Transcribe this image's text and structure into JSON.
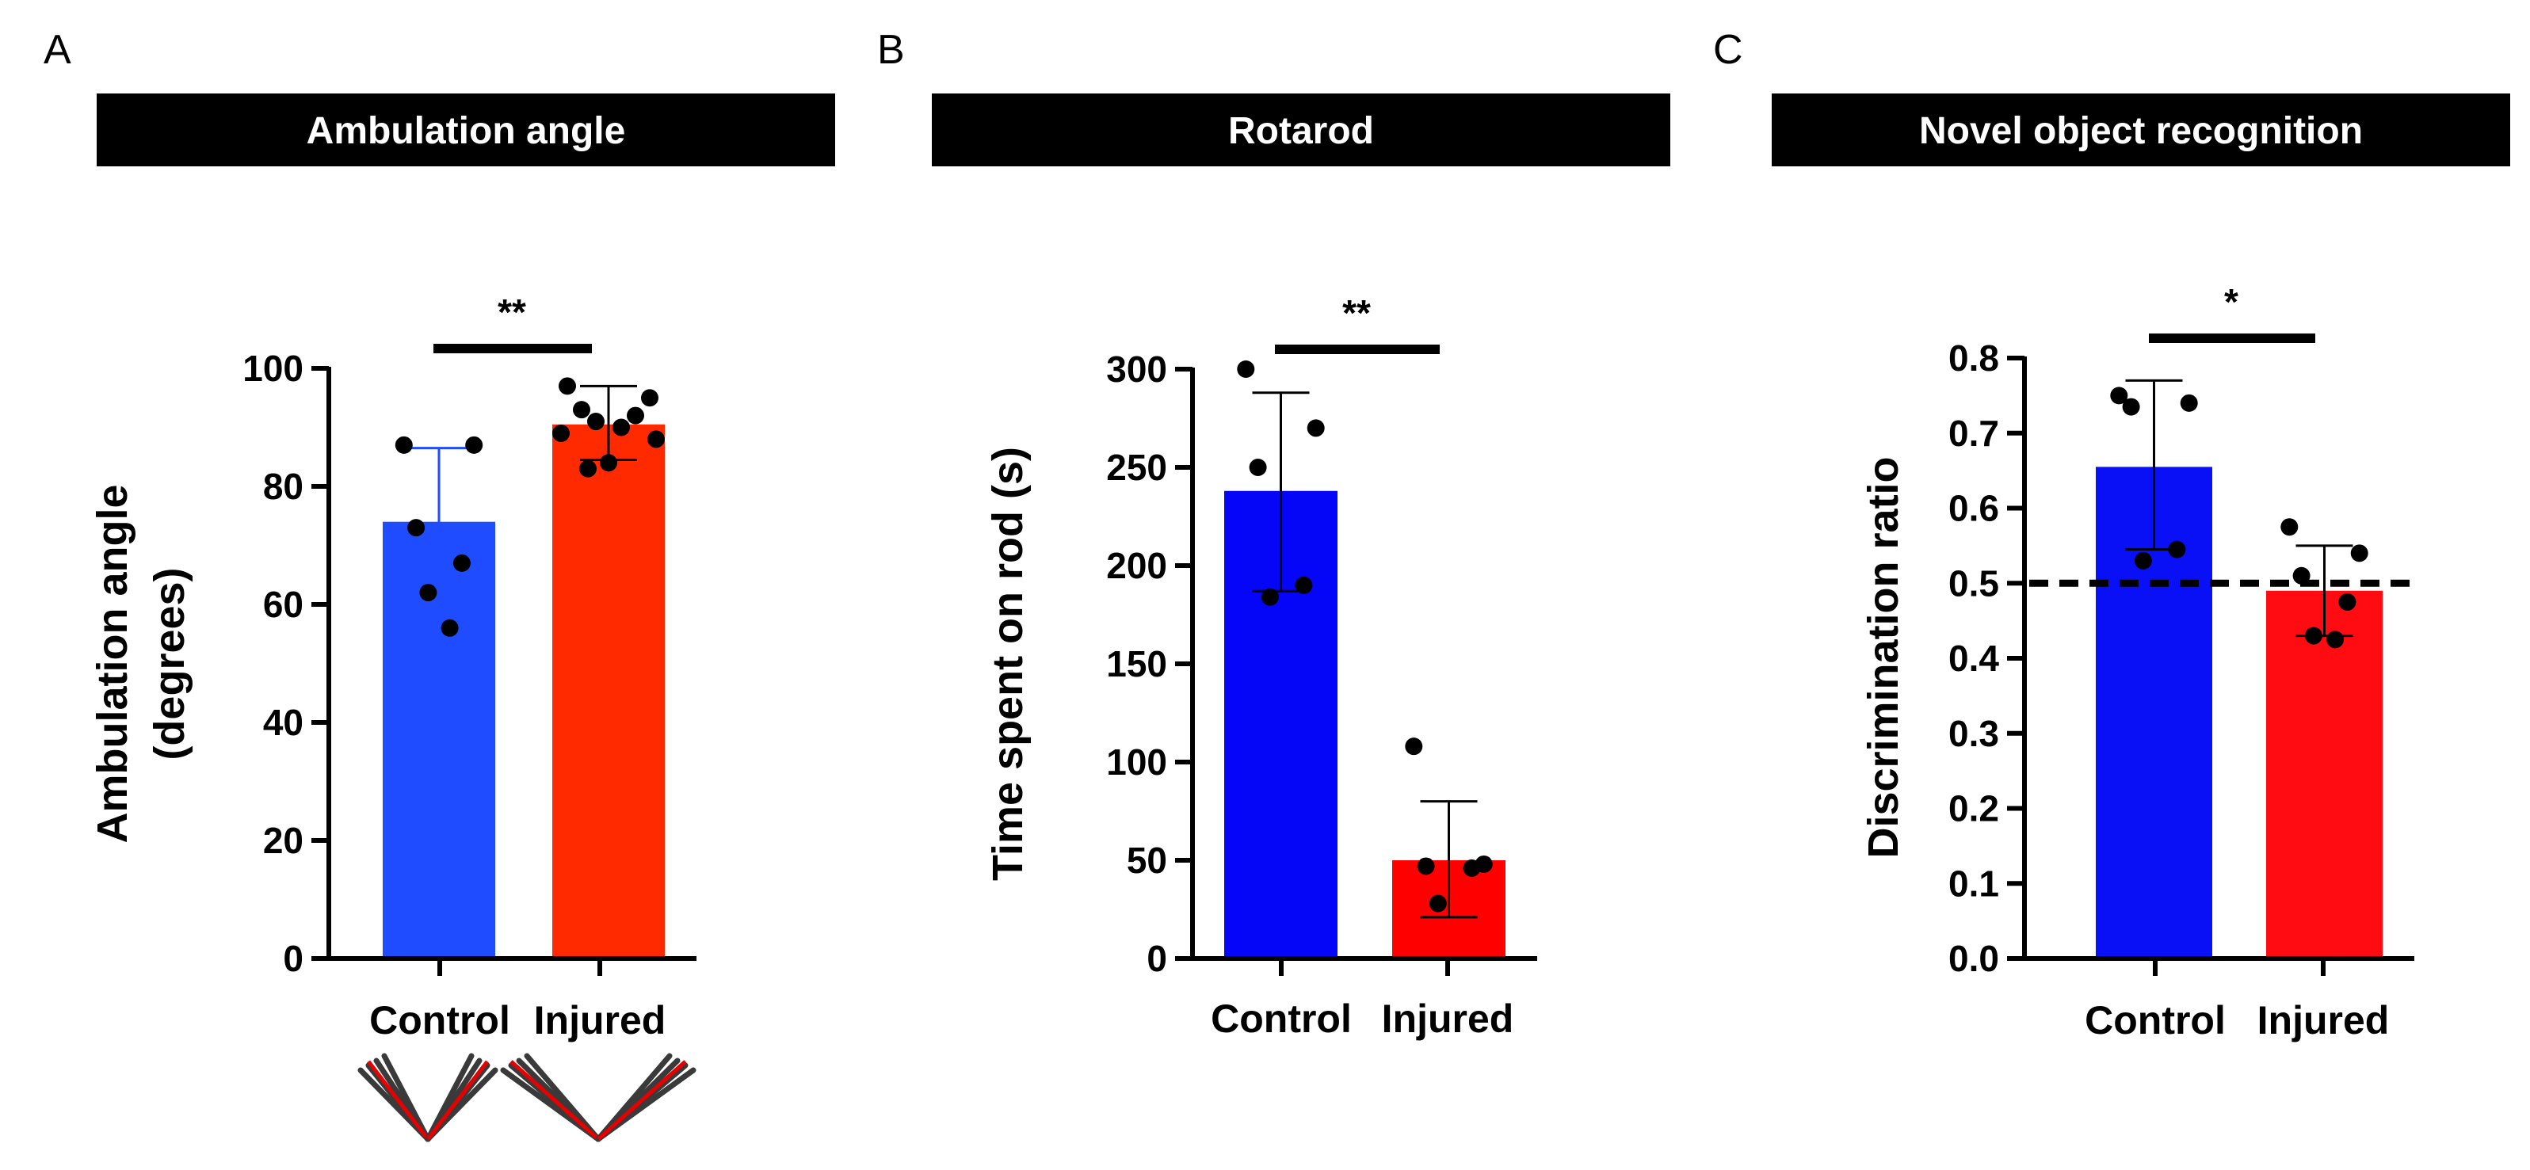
{
  "figure": {
    "colors": {
      "control": "#1f4cff",
      "injured": "#ff2a00",
      "control_c": "#0a10f5",
      "injured_c": "#ff0b12",
      "title_bg": "#000000"
    }
  },
  "chart_data": [
    {
      "panel": "A",
      "type": "bar",
      "title": "Ambulation angle",
      "ylabel": [
        "Ambulation angle",
        "(degrees)"
      ],
      "categories": [
        "Control",
        "Injured"
      ],
      "values": [
        74,
        90.5
      ],
      "errors": [
        [
          66,
          86.5
        ],
        [
          84.5,
          97
        ]
      ],
      "points": [
        [
          87,
          87,
          73,
          67,
          62,
          56
        ],
        [
          97,
          95,
          93,
          92,
          91,
          90,
          89,
          88,
          84,
          83
        ]
      ],
      "ylim": [
        0,
        100
      ],
      "yticks": [
        "0",
        "20",
        "40",
        "60",
        "80",
        "100"
      ],
      "significance": "**",
      "reference_line": null,
      "footer_icons": [
        "limb-angle-control-icon",
        "limb-angle-injured-icon"
      ]
    },
    {
      "panel": "B",
      "type": "bar",
      "title": "Rotarod",
      "ylabel": [
        "Time spent on rod (s)"
      ],
      "categories": [
        "Control",
        "Injured"
      ],
      "values": [
        238,
        50
      ],
      "errors": [
        [
          187,
          288
        ],
        [
          21,
          80
        ]
      ],
      "points": [
        [
          300,
          270,
          250,
          190,
          184
        ],
        [
          108,
          48,
          47,
          46,
          28
        ]
      ],
      "ylim": [
        0,
        300
      ],
      "yticks": [
        "0",
        "50",
        "100",
        "150",
        "200",
        "250",
        "300"
      ],
      "significance": "**",
      "reference_line": null
    },
    {
      "panel": "C",
      "type": "bar",
      "title": "Novel object recognition",
      "ylabel": [
        "Discrimination ratio"
      ],
      "categories": [
        "Control",
        "Injured"
      ],
      "values": [
        0.655,
        0.49
      ],
      "errors": [
        [
          0.545,
          0.77
        ],
        [
          0.43,
          0.55
        ]
      ],
      "points": [
        [
          0.75,
          0.74,
          0.735,
          0.545,
          0.53
        ],
        [
          0.575,
          0.54,
          0.51,
          0.475,
          0.43,
          0.425
        ]
      ],
      "ylim": [
        0,
        0.8
      ],
      "yticks": [
        "0.0",
        "0.1",
        "0.2",
        "0.3",
        "0.4",
        "0.5",
        "0.6",
        "0.7",
        "0.8"
      ],
      "significance": "*",
      "reference_line": 0.5
    }
  ]
}
